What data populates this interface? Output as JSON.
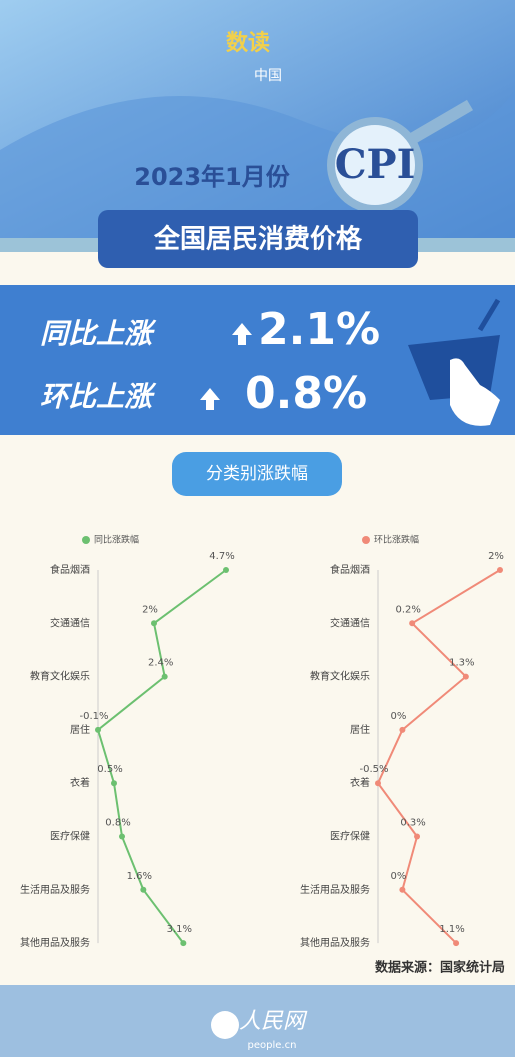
{
  "header": {
    "logo_top": "数读",
    "logo_bottom": "中国",
    "period": "2023年1月份",
    "index": "CPI",
    "banner": "全国居民消费价格"
  },
  "summary": {
    "yoy_label": "同比上涨",
    "yoy_value": "2.1%",
    "mom_label": "环比上涨",
    "mom_value": "0.8%"
  },
  "section_button": "分类别涨跌幅",
  "chart_data": [
    {
      "type": "line",
      "categories": [
        "食品烟酒",
        "交通通信",
        "教育文化娱乐",
        "居住",
        "衣着",
        "医疗保健",
        "生活用品及服务",
        "其他用品及服务"
      ],
      "series": [
        {
          "name": "同比涨跌幅",
          "color": "#6cc070",
          "values": [
            4.7,
            2,
            2.4,
            -0.1,
            0.5,
            0.8,
            1.6,
            3.1
          ],
          "value_labels": [
            "4.7%",
            "2%",
            "2.4%",
            "-0.1%",
            "0.5%",
            "0.8%",
            "1.6%",
            "3.1%"
          ]
        }
      ],
      "xlim": [
        -0.1,
        4.7
      ]
    },
    {
      "type": "line",
      "categories": [
        "食品烟酒",
        "交通通信",
        "教育文化娱乐",
        "居住",
        "衣着",
        "医疗保健",
        "生活用品及服务",
        "其他用品及服务"
      ],
      "series": [
        {
          "name": "环比涨跌幅",
          "color": "#f08a78",
          "values": [
            2,
            0.2,
            1.3,
            0,
            -0.5,
            0.3,
            0,
            1.1
          ],
          "value_labels": [
            "2%",
            "0.2%",
            "1.3%",
            "0%",
            "-0.5%",
            "0.3%",
            "0%",
            "1.1%"
          ]
        }
      ],
      "xlim": [
        -0.5,
        2
      ]
    }
  ],
  "source": "数据来源：国家统计局",
  "footer": {
    "brand": "人民网",
    "site": "people.cn"
  }
}
